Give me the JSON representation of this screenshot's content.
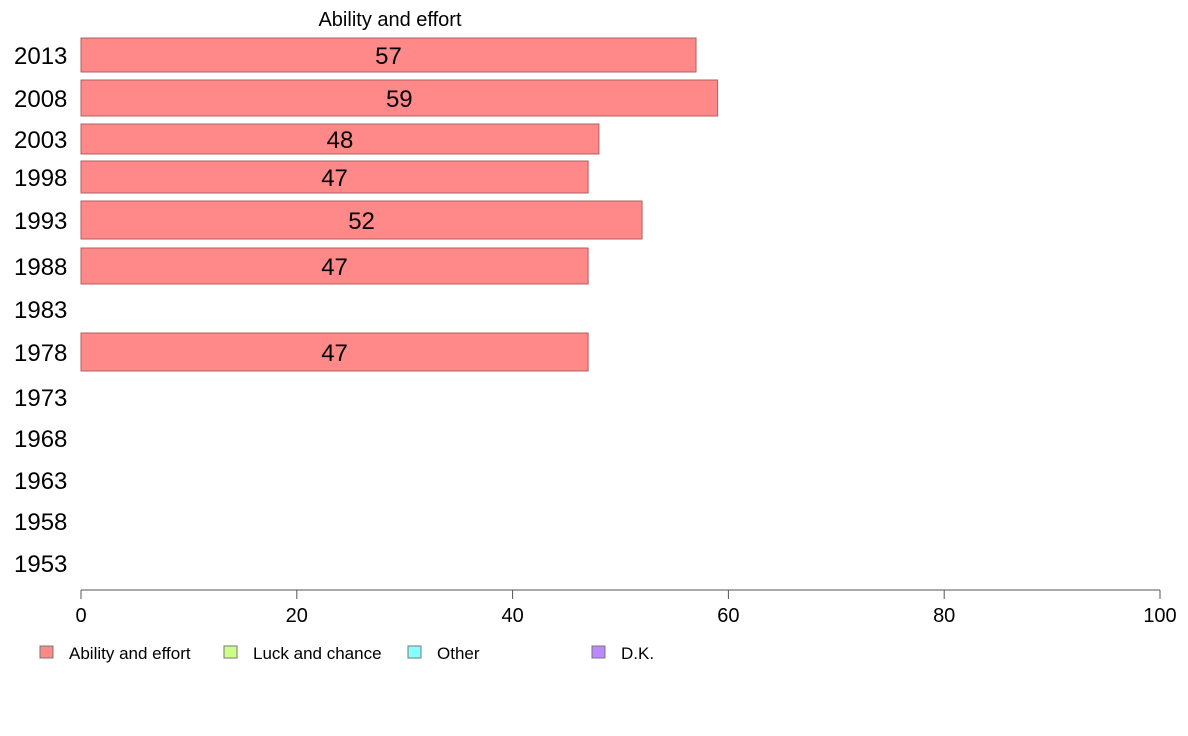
{
  "chart_data": {
    "type": "bar",
    "orientation": "horizontal",
    "title": "Ability and effort",
    "categories": [
      "2013",
      "2008",
      "2003",
      "1998",
      "1993",
      "1988",
      "1983",
      "1978",
      "1973",
      "1968",
      "1963",
      "1958",
      "1953"
    ],
    "series": [
      {
        "name": "Ability and effort",
        "color": "#ff8888",
        "values": [
          57,
          59,
          48,
          47,
          52,
          47,
          null,
          47,
          null,
          null,
          null,
          null,
          null
        ],
        "labels": [
          "57",
          "59",
          "48",
          "47",
          "52",
          "47",
          "",
          "47",
          "",
          "",
          "",
          "",
          ""
        ]
      }
    ],
    "xlim": [
      0,
      100
    ],
    "xticks": [
      "0",
      "20",
      "40",
      "60",
      "80",
      "100"
    ],
    "grid": false,
    "legend": {
      "placement": "bottom",
      "items": [
        {
          "name": "Ability and effort",
          "color": "#ff8888"
        },
        {
          "name": "Luck and chance",
          "color": "#ccff88"
        },
        {
          "name": "Other",
          "color": "#88ffff"
        },
        {
          "name": "D.K.",
          "color": "#bb88ff"
        }
      ]
    }
  }
}
